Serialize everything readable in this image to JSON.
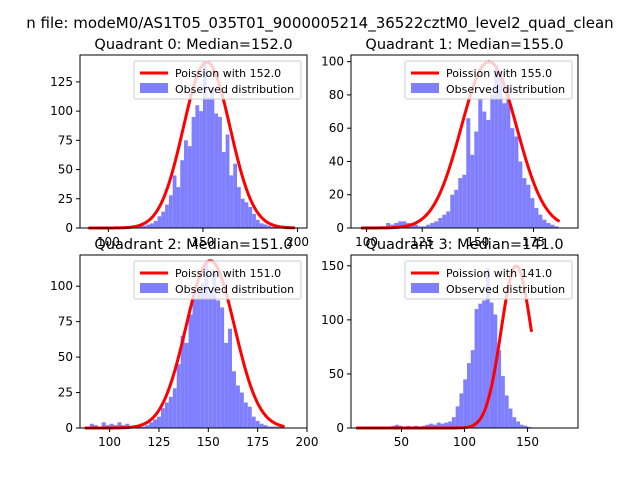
{
  "suptitle": "n file: modeM0/AS1T05_035T01_9000005214_36522cztM0_level2_quad_clean",
  "colors": {
    "hist": "#7f7fff",
    "fit": "#ff0000",
    "frame": "#000000"
  },
  "chart_data": [
    {
      "type": "histogram",
      "title": "Quadrant 0: Median=152.0",
      "xlim": [
        85,
        205
      ],
      "ylim": [
        0,
        148
      ],
      "xticks": [
        100,
        150,
        200
      ],
      "yticks": [
        0,
        25,
        50,
        75,
        100,
        125
      ],
      "legend": {
        "position": "top-right",
        "entries": [
          "Poission with 152.0",
          "Observed distribution"
        ]
      },
      "median": 152.0,
      "hist": {
        "x_start": 90,
        "bin_width": 2,
        "values": [
          1,
          1,
          1,
          1,
          1,
          1,
          1,
          1,
          1,
          1,
          1,
          2,
          1,
          2,
          2,
          3,
          4,
          6,
          10,
          14,
          20,
          28,
          45,
          35,
          58,
          75,
          70,
          95,
          105,
          100,
          142,
          112,
          120,
          98,
          95,
          65,
          80,
          45,
          55,
          35,
          25,
          22,
          18,
          12,
          7,
          4,
          3,
          2,
          1,
          1,
          1,
          1,
          1,
          1
        ]
      },
      "fit": {
        "mu": 152.0,
        "peak": 142
      }
    },
    {
      "type": "histogram",
      "title": "Quadrant 1: Median=155.0",
      "xlim": [
        93,
        195
      ],
      "ylim": [
        0,
        104
      ],
      "xticks": [
        100,
        125,
        150,
        175
      ],
      "yticks": [
        0,
        20,
        40,
        60,
        80,
        100
      ],
      "legend": {
        "position": "top-right",
        "entries": [
          "Poission with 155.0",
          "Observed distribution"
        ]
      },
      "median": 155.0,
      "hist": {
        "x_start": 98,
        "bin_width": 1.8,
        "values": [
          1,
          1,
          1,
          1,
          1,
          1,
          3,
          2,
          3,
          4,
          4,
          3,
          2,
          2,
          1,
          1,
          2,
          3,
          4,
          6,
          8,
          10,
          20,
          23,
          30,
          32,
          66,
          44,
          58,
          78,
          70,
          65,
          80,
          98,
          92,
          75,
          85,
          60,
          55,
          40,
          30,
          26,
          18,
          12,
          8,
          5,
          3,
          2,
          1
        ]
      },
      "fit": {
        "mu": 155.0,
        "peak": 100
      }
    },
    {
      "type": "histogram",
      "title": "Quadrant 2: Median=151.0",
      "xlim": [
        85,
        200
      ],
      "ylim": [
        0,
        122
      ],
      "xticks": [
        100,
        125,
        150,
        175,
        200
      ],
      "yticks": [
        0,
        25,
        50,
        75,
        100
      ],
      "legend": {
        "position": "top-right",
        "entries": [
          "Poission with 151.0",
          "Observed distribution"
        ]
      },
      "median": 151.0,
      "hist": {
        "x_start": 88,
        "bin_width": 2,
        "values": [
          1,
          3,
          2,
          1,
          4,
          2,
          3,
          2,
          4,
          2,
          3,
          1,
          2,
          1,
          1,
          2,
          4,
          6,
          8,
          14,
          18,
          22,
          28,
          45,
          65,
          60,
          80,
          92,
          95,
          102,
          118,
          95,
          110,
          90,
          85,
          60,
          70,
          40,
          30,
          25,
          18,
          15,
          8,
          5,
          3,
          2,
          1,
          1,
          1,
          1
        ]
      },
      "fit": {
        "mu": 151.0,
        "peak": 118
      }
    },
    {
      "type": "histogram",
      "title": "Quadrant 3: Median=141.0",
      "xlim": [
        10,
        190
      ],
      "ylim": [
        0,
        160
      ],
      "xticks": [
        50,
        100,
        150
      ],
      "yticks": [
        0,
        50,
        100,
        150
      ],
      "legend": {
        "position": "top-right",
        "entries": [
          "Poission with 141.0",
          "Observed distribution"
        ]
      },
      "median": 141.0,
      "hist": {
        "x_start": 15,
        "bin_width": 3,
        "values": [
          1,
          1,
          1,
          1,
          1,
          1,
          1,
          1,
          1,
          2,
          3,
          2,
          1,
          2,
          1,
          2,
          1,
          2,
          3,
          4,
          3,
          5,
          4,
          5,
          6,
          10,
          20,
          32,
          45,
          60,
          72,
          110,
          115,
          118,
          148,
          116,
          105,
          72,
          48,
          30,
          18,
          10,
          6,
          3,
          2,
          1
        ]
      },
      "fit": {
        "mu": 141.0,
        "peak": 150
      }
    }
  ]
}
